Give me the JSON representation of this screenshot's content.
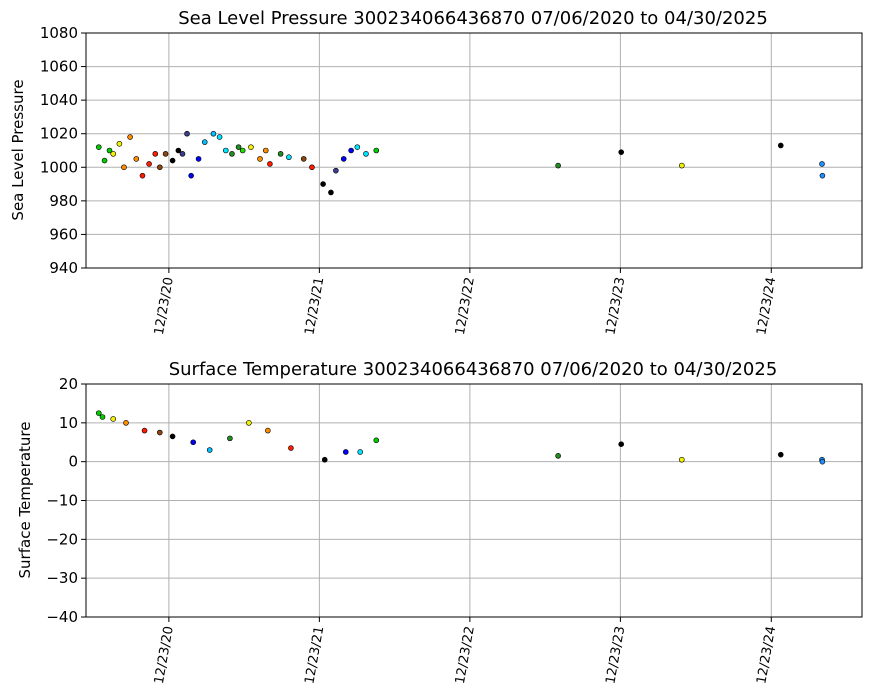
{
  "chart_data": [
    {
      "type": "scatter",
      "title": "Sea Level Pressure 300234066436870  07/06/2020 to 04/30/2025",
      "xlabel": "",
      "ylabel": "Sea Level Pressure",
      "ylim": [
        940,
        1080
      ],
      "yticks": [
        "940",
        "960",
        "980",
        "1000",
        "1020",
        "1040",
        "1060",
        "1080"
      ],
      "xticks": [
        "12/23/20",
        "12/23/21",
        "12/23/22",
        "12/23/23",
        "12/23/24"
      ],
      "xlim": [
        "2020-06-05",
        "2025-07-31"
      ],
      "grid": true,
      "series": [
        {
          "color": "#00cc00",
          "values": [
            {
              "x": "2020-07-06",
              "y": 1012
            },
            {
              "x": "2020-07-20",
              "y": 1004
            },
            {
              "x": "2020-08-01",
              "y": 1010
            }
          ]
        },
        {
          "color": "#f2f200",
          "values": [
            {
              "x": "2020-08-10",
              "y": 1008
            },
            {
              "x": "2020-08-25",
              "y": 1014
            }
          ]
        },
        {
          "color": "#ff8c00",
          "values": [
            {
              "x": "2020-09-05",
              "y": 1000
            },
            {
              "x": "2020-09-20",
              "y": 1018
            },
            {
              "x": "2020-10-05",
              "y": 1005
            }
          ]
        },
        {
          "color": "#ff1a00",
          "values": [
            {
              "x": "2020-10-20",
              "y": 995
            },
            {
              "x": "2020-11-05",
              "y": 1002
            },
            {
              "x": "2020-11-20",
              "y": 1008
            }
          ]
        },
        {
          "color": "#8b4513",
          "values": [
            {
              "x": "2020-12-01",
              "y": 1000
            },
            {
              "x": "2020-12-15",
              "y": 1008
            }
          ]
        },
        {
          "color": "#000000",
          "values": [
            {
              "x": "2021-01-01",
              "y": 1004
            },
            {
              "x": "2021-01-15",
              "y": 1010
            }
          ]
        },
        {
          "color": "#3b3b8f",
          "values": [
            {
              "x": "2021-01-25",
              "y": 1008
            },
            {
              "x": "2021-02-05",
              "y": 1020
            }
          ]
        },
        {
          "color": "#0000ff",
          "values": [
            {
              "x": "2021-02-15",
              "y": 995
            },
            {
              "x": "2021-03-05",
              "y": 1005
            }
          ]
        },
        {
          "color": "#00bfff",
          "values": [
            {
              "x": "2021-03-20",
              "y": 1015
            },
            {
              "x": "2021-04-10",
              "y": 1020
            }
          ]
        },
        {
          "color": "#00e5ff",
          "values": [
            {
              "x": "2021-04-25",
              "y": 1018
            },
            {
              "x": "2021-05-10",
              "y": 1010
            }
          ]
        },
        {
          "color": "#228b22",
          "values": [
            {
              "x": "2021-05-25",
              "y": 1008
            },
            {
              "x": "2021-06-10",
              "y": 1012
            }
          ]
        },
        {
          "color": "#22dd00",
          "values": [
            {
              "x": "2021-06-20",
              "y": 1010
            }
          ]
        },
        {
          "color": "#f2f200",
          "values": [
            {
              "x": "2021-07-10",
              "y": 1012
            }
          ]
        },
        {
          "color": "#ff8c00",
          "values": [
            {
              "x": "2021-08-01",
              "y": 1005
            },
            {
              "x": "2021-08-15",
              "y": 1010
            }
          ]
        },
        {
          "color": "#ff1a00",
          "values": [
            {
              "x": "2021-08-25",
              "y": 1002
            }
          ]
        },
        {
          "color": "#228b22",
          "values": [
            {
              "x": "2021-09-20",
              "y": 1008
            }
          ]
        },
        {
          "color": "#00e5ff",
          "values": [
            {
              "x": "2021-10-10",
              "y": 1006
            }
          ]
        },
        {
          "color": "#8b4513",
          "values": [
            {
              "x": "2021-11-15",
              "y": 1005
            }
          ]
        },
        {
          "color": "#ff1a00",
          "values": [
            {
              "x": "2021-12-05",
              "y": 1000
            }
          ]
        },
        {
          "color": "#000000",
          "values": [
            {
              "x": "2022-01-01",
              "y": 990
            },
            {
              "x": "2022-01-20",
              "y": 985
            }
          ]
        },
        {
          "color": "#3b3b8f",
          "values": [
            {
              "x": "2022-02-01",
              "y": 998
            }
          ]
        },
        {
          "color": "#0000ff",
          "values": [
            {
              "x": "2022-02-20",
              "y": 1005
            },
            {
              "x": "2022-03-10",
              "y": 1010
            }
          ]
        },
        {
          "color": "#00e5ff",
          "values": [
            {
              "x": "2022-03-25",
              "y": 1012
            },
            {
              "x": "2022-04-15",
              "y": 1008
            }
          ]
        },
        {
          "color": "#00cc00",
          "values": [
            {
              "x": "2022-05-10",
              "y": 1010
            }
          ]
        },
        {
          "color": "#228b22",
          "values": [
            {
              "x": "2023-07-25",
              "y": 1001
            }
          ]
        },
        {
          "color": "#000000",
          "values": [
            {
              "x": "2023-12-25",
              "y": 1009
            }
          ]
        },
        {
          "color": "#f2f200",
          "values": [
            {
              "x": "2024-05-20",
              "y": 1001
            }
          ]
        },
        {
          "color": "#000000",
          "values": [
            {
              "x": "2025-01-15",
              "y": 1013
            }
          ]
        },
        {
          "color": "#1e90ff",
          "values": [
            {
              "x": "2025-04-25",
              "y": 1002
            },
            {
              "x": "2025-04-26",
              "y": 995
            }
          ]
        }
      ]
    },
    {
      "type": "scatter",
      "title": "Surface Temperature 300234066436870  07/06/2020 to 04/30/2025",
      "xlabel": "",
      "ylabel": "Surface Temperature",
      "ylim": [
        -40,
        20
      ],
      "yticks": [
        "−40",
        "−30",
        "−20",
        "−10",
        "0",
        "10",
        "20"
      ],
      "xticks": [
        "12/23/20",
        "12/23/21",
        "12/23/22",
        "12/23/23",
        "12/23/24"
      ],
      "xlim": [
        "2020-06-05",
        "2025-07-31"
      ],
      "grid": true,
      "series": [
        {
          "color": "#00cc00",
          "values": [
            {
              "x": "2020-07-06",
              "y": 12.5
            },
            {
              "x": "2020-07-15",
              "y": 11.5
            }
          ]
        },
        {
          "color": "#f2f200",
          "values": [
            {
              "x": "2020-08-10",
              "y": 11
            }
          ]
        },
        {
          "color": "#ff8c00",
          "values": [
            {
              "x": "2020-09-10",
              "y": 10
            }
          ]
        },
        {
          "color": "#ff1a00",
          "values": [
            {
              "x": "2020-10-25",
              "y": 8
            }
          ]
        },
        {
          "color": "#8b4513",
          "values": [
            {
              "x": "2020-12-01",
              "y": 7.5
            }
          ]
        },
        {
          "color": "#000000",
          "values": [
            {
              "x": "2021-01-01",
              "y": 6.5
            }
          ]
        },
        {
          "color": "#0000ff",
          "values": [
            {
              "x": "2021-02-20",
              "y": 5
            }
          ]
        },
        {
          "color": "#00bfff",
          "values": [
            {
              "x": "2021-04-01",
              "y": 3
            }
          ]
        },
        {
          "color": "#228b22",
          "values": [
            {
              "x": "2021-05-20",
              "y": 6
            }
          ]
        },
        {
          "color": "#f2f200",
          "values": [
            {
              "x": "2021-07-05",
              "y": 10
            }
          ]
        },
        {
          "color": "#ff8c00",
          "values": [
            {
              "x": "2021-08-20",
              "y": 8
            }
          ]
        },
        {
          "color": "#ff1a00",
          "values": [
            {
              "x": "2021-10-15",
              "y": 3.5
            }
          ]
        },
        {
          "color": "#000000",
          "values": [
            {
              "x": "2022-01-05",
              "y": 0.5
            }
          ]
        },
        {
          "color": "#0000ff",
          "values": [
            {
              "x": "2022-02-25",
              "y": 2.5
            }
          ]
        },
        {
          "color": "#00e5ff",
          "values": [
            {
              "x": "2022-04-01",
              "y": 2.5
            }
          ]
        },
        {
          "color": "#00cc00",
          "values": [
            {
              "x": "2022-05-10",
              "y": 5.5
            }
          ]
        },
        {
          "color": "#228b22",
          "values": [
            {
              "x": "2023-07-25",
              "y": 1.5
            }
          ]
        },
        {
          "color": "#000000",
          "values": [
            {
              "x": "2023-12-25",
              "y": 4.5
            }
          ]
        },
        {
          "color": "#f2f200",
          "values": [
            {
              "x": "2024-05-20",
              "y": 0.5
            }
          ]
        },
        {
          "color": "#000000",
          "values": [
            {
              "x": "2025-01-15",
              "y": 1.8
            }
          ]
        },
        {
          "color": "#1e90ff",
          "values": [
            {
              "x": "2025-04-25",
              "y": 0.5
            },
            {
              "x": "2025-04-26",
              "y": 0
            }
          ]
        }
      ]
    }
  ]
}
